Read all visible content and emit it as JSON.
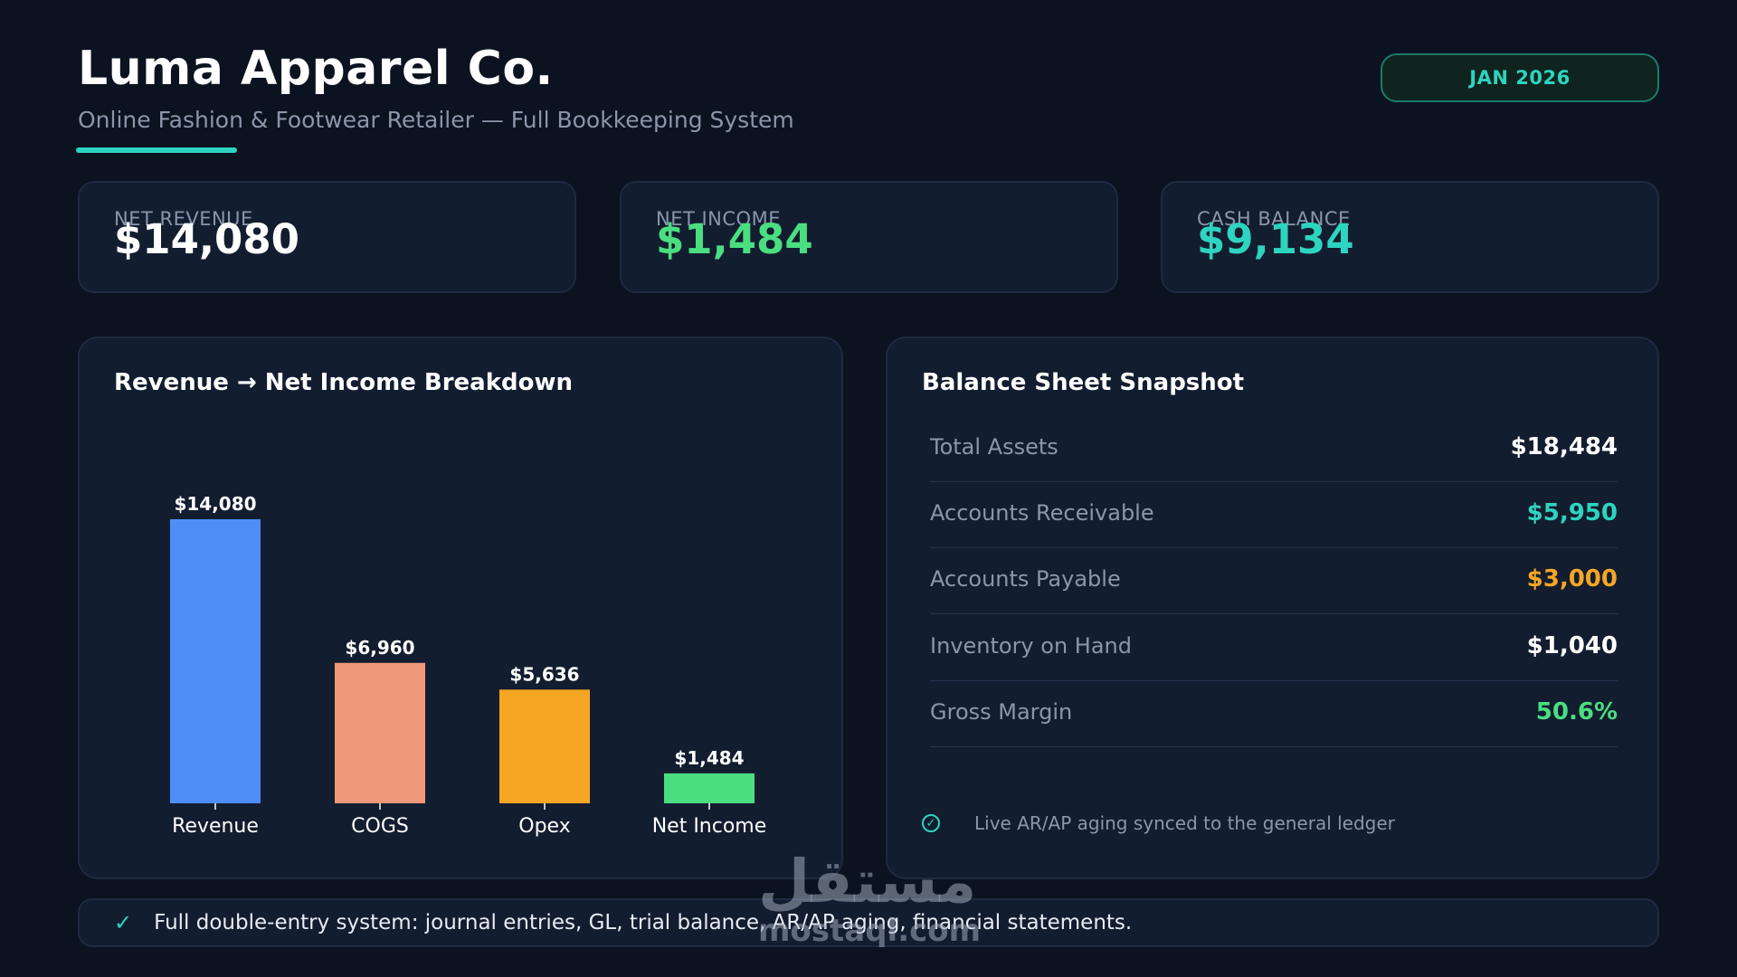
{
  "header": {
    "title": "Luma Apparel Co.",
    "subtitle": "Online Fashion & Footwear Retailer — Full Bookkeeping System",
    "period": "JAN 2026",
    "accent_color": "#2dd4bf"
  },
  "kpis": [
    {
      "label": "NET REVENUE",
      "value": "$14,080",
      "color": "#ffffff"
    },
    {
      "label": "NET INCOME",
      "value": "$1,484",
      "color": "#4ade80"
    },
    {
      "label": "CASH BALANCE",
      "value": "$9,134",
      "color": "#2dd4bf"
    }
  ],
  "breakdown": {
    "title": "Revenue → Net Income Breakdown"
  },
  "chart_data": {
    "type": "bar",
    "title": "Revenue → Net Income Breakdown",
    "categories": [
      "Revenue",
      "COGS",
      "Opex",
      "Net Income"
    ],
    "values": [
      14080,
      6960,
      5636,
      1484
    ],
    "value_labels": [
      "$14,080",
      "$6,960",
      "$5,636",
      "$1,484"
    ],
    "colors": [
      "#4f8ef7",
      "#f0987a",
      "#f5a623",
      "#4ade80"
    ],
    "ylim": [
      0,
      14080
    ],
    "grid": false,
    "xlabel": "",
    "ylabel": ""
  },
  "balance_sheet": {
    "title": "Balance Sheet Snapshot",
    "rows": [
      {
        "label": "Total Assets",
        "value": "$18,484",
        "color": "#ffffff"
      },
      {
        "label": "Accounts Receivable",
        "value": "$5,950",
        "color": "#2dd4bf"
      },
      {
        "label": "Accounts Payable",
        "value": "$3,000",
        "color": "#f5a623"
      },
      {
        "label": "Inventory on Hand",
        "value": "$1,040",
        "color": "#ffffff"
      },
      {
        "label": "Gross Margin",
        "value": "50.6%",
        "color": "#4ade80"
      }
    ],
    "note": "Live AR/AP aging synced to the general ledger",
    "note_icon": "check-circle-icon"
  },
  "footer": {
    "icon": "checkmark-icon",
    "text": "Full double-entry system: journal entries, GL, trial balance, AR/AP aging, financial statements."
  },
  "watermark": {
    "arabic": "مستقل",
    "latin": "mostaql.com"
  }
}
